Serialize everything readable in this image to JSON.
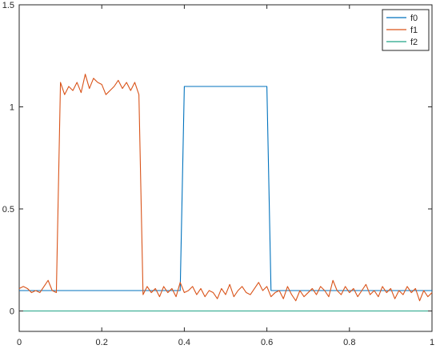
{
  "chart_data": {
    "type": "line",
    "xlim": [
      0,
      1
    ],
    "ylim": [
      -0.1,
      1.5
    ],
    "x_ticks": [
      0,
      0.2,
      0.4,
      0.6,
      0.8,
      1
    ],
    "x_tick_labels": [
      "0",
      "0.2",
      "0.4",
      "0.6",
      "0.8",
      "1"
    ],
    "y_ticks": [
      0,
      0.5,
      1,
      1.5
    ],
    "y_tick_labels": [
      "0",
      "0.5",
      "1",
      "1.5"
    ],
    "grid": false,
    "legend_position": "top-right",
    "series": [
      {
        "name": "f0",
        "color": "#0072BD",
        "x": [
          0,
          0.39,
          0.4,
          0.6,
          0.61,
          1.0
        ],
        "y": [
          0.1,
          0.1,
          1.1,
          1.1,
          0.1,
          0.1
        ]
      },
      {
        "name": "f1",
        "color": "#D95319",
        "x": [
          0,
          0.01,
          0.02,
          0.03,
          0.04,
          0.05,
          0.06,
          0.07,
          0.08,
          0.09,
          0.1,
          0.11,
          0.12,
          0.13,
          0.14,
          0.15,
          0.16,
          0.17,
          0.18,
          0.19,
          0.2,
          0.21,
          0.22,
          0.23,
          0.24,
          0.25,
          0.26,
          0.27,
          0.28,
          0.29,
          0.3,
          0.31,
          0.32,
          0.33,
          0.34,
          0.35,
          0.36,
          0.37,
          0.38,
          0.39,
          0.4,
          0.41,
          0.42,
          0.43,
          0.44,
          0.45,
          0.46,
          0.47,
          0.48,
          0.49,
          0.5,
          0.51,
          0.52,
          0.53,
          0.54,
          0.55,
          0.56,
          0.57,
          0.58,
          0.59,
          0.6,
          0.61,
          0.62,
          0.63,
          0.64,
          0.65,
          0.66,
          0.67,
          0.68,
          0.69,
          0.7,
          0.71,
          0.72,
          0.73,
          0.74,
          0.75,
          0.76,
          0.77,
          0.78,
          0.79,
          0.8,
          0.81,
          0.82,
          0.83,
          0.84,
          0.85,
          0.86,
          0.87,
          0.88,
          0.89,
          0.9,
          0.91,
          0.92,
          0.93,
          0.94,
          0.95,
          0.96,
          0.97,
          0.98,
          0.99,
          1.0
        ],
        "y": [
          0.11,
          0.12,
          0.11,
          0.09,
          0.1,
          0.09,
          0.12,
          0.15,
          0.1,
          0.09,
          1.12,
          1.06,
          1.1,
          1.08,
          1.12,
          1.07,
          1.16,
          1.09,
          1.14,
          1.12,
          1.11,
          1.06,
          1.08,
          1.1,
          1.13,
          1.09,
          1.12,
          1.08,
          1.12,
          1.06,
          0.08,
          0.12,
          0.09,
          0.11,
          0.07,
          0.12,
          0.09,
          0.11,
          0.07,
          0.14,
          0.09,
          0.1,
          0.12,
          0.08,
          0.11,
          0.07,
          0.1,
          0.09,
          0.06,
          0.11,
          0.08,
          0.13,
          0.07,
          0.1,
          0.12,
          0.09,
          0.08,
          0.11,
          0.14,
          0.1,
          0.12,
          0.07,
          0.09,
          0.1,
          0.06,
          0.12,
          0.08,
          0.05,
          0.1,
          0.07,
          0.09,
          0.11,
          0.08,
          0.12,
          0.1,
          0.07,
          0.15,
          0.1,
          0.08,
          0.12,
          0.09,
          0.11,
          0.07,
          0.1,
          0.13,
          0.08,
          0.1,
          0.07,
          0.12,
          0.09,
          0.11,
          0.06,
          0.1,
          0.08,
          0.12,
          0.09,
          0.11,
          0.05,
          0.1,
          0.07,
          0.09
        ]
      },
      {
        "name": "f2",
        "color": "#20A386",
        "x": [
          0,
          1
        ],
        "y": [
          0,
          0
        ]
      }
    ]
  }
}
